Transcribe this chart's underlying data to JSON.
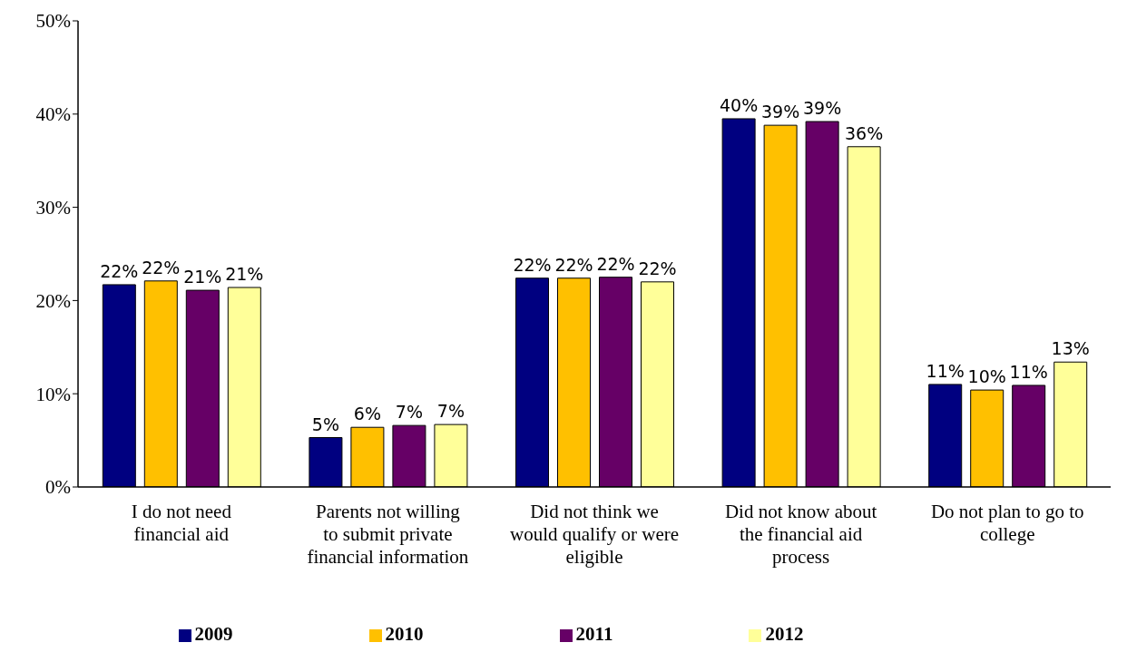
{
  "chart_data": {
    "type": "bar",
    "categories": [
      "I do not need financial aid",
      "Parents not willing to submit private financial information",
      "Did not think we would qualify or were eligible",
      "Did not know about the financial aid process",
      "Do not plan to go to college"
    ],
    "series": [
      {
        "name": "2009",
        "color": "#000080",
        "values": [
          21.7,
          5.3,
          22.4,
          39.5,
          11.0
        ],
        "value_labels": [
          "22%",
          "5%",
          "22%",
          "40%",
          "11%"
        ]
      },
      {
        "name": "2010",
        "color": "#ffc000",
        "values": [
          22.1,
          6.4,
          22.4,
          38.8,
          10.4
        ],
        "value_labels": [
          "22%",
          "6%",
          "22%",
          "39%",
          "10%"
        ]
      },
      {
        "name": "2011",
        "color": "#660066",
        "values": [
          21.1,
          6.6,
          22.5,
          39.2,
          10.9
        ],
        "value_labels": [
          "21%",
          "7%",
          "22%",
          "39%",
          "11%"
        ]
      },
      {
        "name": "2012",
        "color": "#ffff99",
        "values": [
          21.4,
          6.7,
          22.0,
          36.5,
          13.4
        ],
        "value_labels": [
          "21%",
          "7%",
          "22%",
          "36%",
          "13%"
        ]
      }
    ],
    "ylim": [
      0,
      50
    ],
    "yticks": [
      {
        "value": 0,
        "label": "0%"
      },
      {
        "value": 10,
        "label": "10%"
      },
      {
        "value": 20,
        "label": "20%"
      },
      {
        "value": 30,
        "label": "30%"
      },
      {
        "value": 40,
        "label": "40%"
      },
      {
        "value": 50,
        "label": "50%"
      }
    ],
    "grid": false,
    "legend": "bottom"
  }
}
